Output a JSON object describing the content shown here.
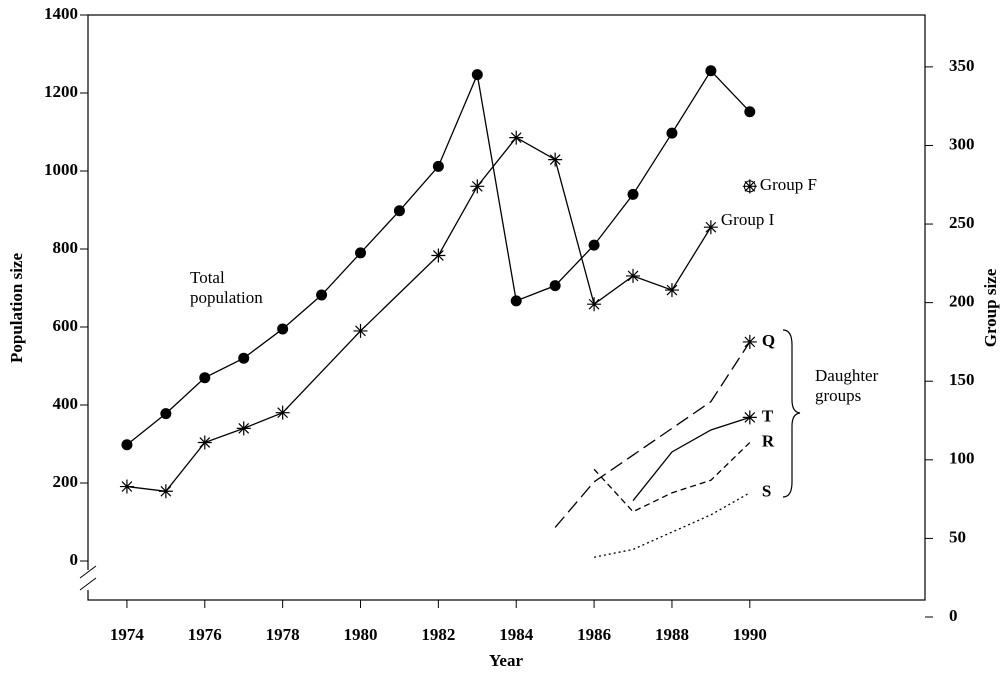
{
  "chart_data": {
    "type": "line",
    "xlabel": "Year",
    "ylabel": "Population size",
    "y2label": "Group size",
    "xlim": [
      1973,
      1994.5
    ],
    "xticks": [
      1974,
      1976,
      1978,
      1980,
      1982,
      1984,
      1986,
      1988,
      1990
    ],
    "ylim": [
      -100,
      1400
    ],
    "yticks": [
      0,
      200,
      400,
      600,
      800,
      1000,
      1200,
      1400
    ],
    "y2lim": [
      0,
      383
    ],
    "y2ticks": [
      0,
      50,
      100,
      150,
      200,
      250,
      300,
      350
    ],
    "annotations": [
      "Daughter groups"
    ],
    "series": [
      {
        "name": "Total population",
        "color": "#000000",
        "marker": "circle",
        "style": "solid",
        "x": [
          1974,
          1975,
          1976,
          1977,
          1978,
          1979,
          1980,
          1981,
          1982,
          1983,
          1984,
          1985,
          1986,
          1987,
          1988,
          1989,
          1990
        ],
        "values": [
          298,
          378,
          470,
          520,
          595,
          682,
          790,
          898,
          1012,
          1247,
          667,
          706,
          810,
          940,
          1097,
          1257,
          1152
        ]
      },
      {
        "name": "Group I",
        "color": "#000000",
        "marker": "star",
        "style": "solid",
        "axis": "y2",
        "x": [
          1974,
          1975,
          1976,
          1977,
          1978,
          1980,
          1982,
          1983,
          1984,
          1985,
          1986,
          1987,
          1988,
          1989
        ],
        "values": [
          83,
          80,
          111,
          120,
          130,
          182,
          230,
          274,
          305,
          291,
          199,
          217,
          208,
          248
        ]
      },
      {
        "name": "Group F",
        "color": "#000000",
        "marker": "circled-star",
        "style": "none",
        "axis": "y2",
        "x": [
          1990
        ],
        "values": [
          274
        ]
      },
      {
        "name": "Q",
        "color": "#000000",
        "marker": "star-end",
        "style": "long-dash",
        "axis": "y2",
        "x": [
          1985,
          1986,
          1989,
          1990
        ],
        "values": [
          57,
          86,
          137,
          175
        ]
      },
      {
        "name": "T",
        "color": "#000000",
        "marker": "star-end",
        "style": "solid",
        "axis": "y2",
        "x": [
          1987,
          1988,
          1989,
          1990
        ],
        "values": [
          74,
          105,
          119,
          127
        ]
      },
      {
        "name": "R",
        "color": "#000000",
        "marker": "none",
        "style": "short-dash",
        "axis": "y2",
        "x": [
          1986,
          1987,
          1988,
          1989,
          1990
        ],
        "values": [
          94,
          67,
          79,
          87,
          111
        ]
      },
      {
        "name": "S",
        "color": "#000000",
        "marker": "none",
        "style": "dotted",
        "axis": "y2",
        "x": [
          1986,
          1987,
          1988,
          1989,
          1990
        ],
        "values": [
          38,
          43,
          54,
          65,
          79
        ]
      }
    ]
  }
}
